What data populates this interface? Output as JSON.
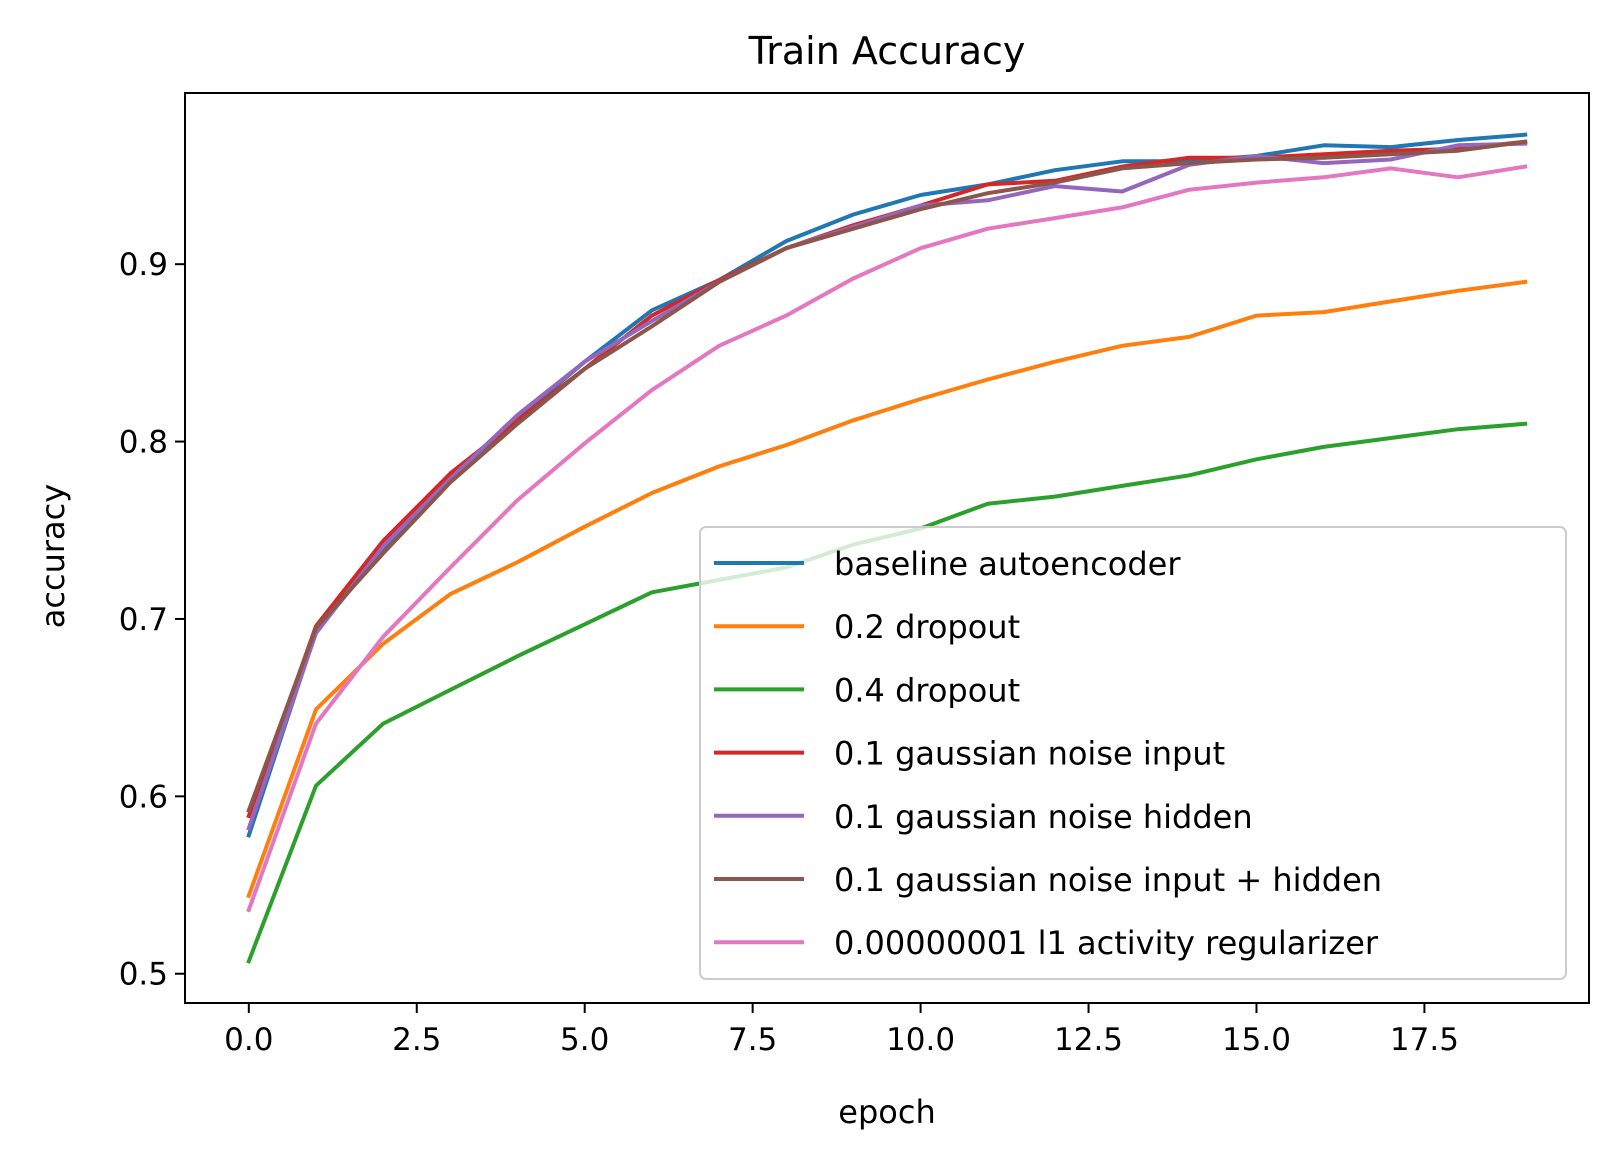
{
  "chart_data": {
    "type": "line",
    "title": "Train Accuracy",
    "xlabel": "epoch",
    "ylabel": "accuracy",
    "xlim": [
      -0.95,
      19.95
    ],
    "ylim": [
      0.4835,
      0.9965
    ],
    "x": [
      0,
      1,
      2,
      3,
      4,
      5,
      6,
      7,
      8,
      9,
      10,
      11,
      12,
      13,
      14,
      15,
      16,
      17,
      18,
      19
    ],
    "xticks": [
      0.0,
      2.5,
      5.0,
      7.5,
      10.0,
      12.5,
      15.0,
      17.5
    ],
    "xtick_labels": [
      "0.0",
      "2.5",
      "5.0",
      "7.5",
      "10.0",
      "12.5",
      "15.0",
      "17.5"
    ],
    "yticks": [
      0.5,
      0.6,
      0.7,
      0.8,
      0.9
    ],
    "ytick_labels": [
      "0.5",
      "0.6",
      "0.7",
      "0.8",
      "0.9"
    ],
    "grid": false,
    "legend_position": "lower right",
    "series": [
      {
        "name": "baseline autoencoder",
        "color": "#1f77b4",
        "values": [
          0.578,
          0.693,
          0.739,
          0.778,
          0.813,
          0.845,
          0.874,
          0.891,
          0.913,
          0.928,
          0.939,
          0.945,
          0.953,
          0.958,
          0.958,
          0.961,
          0.967,
          0.966,
          0.97,
          0.973
        ]
      },
      {
        "name": "0.2 dropout",
        "color": "#ff7f0e",
        "values": [
          0.544,
          0.649,
          0.686,
          0.714,
          0.732,
          0.752,
          0.771,
          0.786,
          0.798,
          0.812,
          0.824,
          0.835,
          0.845,
          0.854,
          0.859,
          0.871,
          0.873,
          0.879,
          0.885,
          0.89
        ]
      },
      {
        "name": "0.4 dropout",
        "color": "#2ca02c",
        "values": [
          0.507,
          0.606,
          0.641,
          0.66,
          0.679,
          0.697,
          0.715,
          0.722,
          0.729,
          0.742,
          0.751,
          0.765,
          0.769,
          0.775,
          0.781,
          0.79,
          0.797,
          0.802,
          0.807,
          0.81
        ]
      },
      {
        "name": "0.1 gaussian noise input",
        "color": "#d62728",
        "values": [
          0.589,
          0.696,
          0.744,
          0.782,
          0.812,
          0.841,
          0.871,
          0.891,
          0.909,
          0.922,
          0.933,
          0.945,
          0.947,
          0.955,
          0.96,
          0.96,
          0.962,
          0.964,
          0.965,
          0.969
        ]
      },
      {
        "name": "0.1 gaussian noise hidden",
        "color": "#9467bd",
        "values": [
          0.582,
          0.692,
          0.741,
          0.779,
          0.815,
          0.845,
          0.868,
          0.89,
          0.909,
          0.921,
          0.933,
          0.936,
          0.944,
          0.941,
          0.956,
          0.961,
          0.957,
          0.959,
          0.967,
          0.968
        ]
      },
      {
        "name": "0.1 gaussian noise input + hidden",
        "color": "#8c564b",
        "values": [
          0.592,
          0.695,
          0.737,
          0.777,
          0.81,
          0.841,
          0.865,
          0.89,
          0.909,
          0.92,
          0.931,
          0.94,
          0.946,
          0.954,
          0.957,
          0.959,
          0.96,
          0.962,
          0.964,
          0.969
        ]
      },
      {
        "name": "0.00000001 l1 activity regularizer",
        "color": "#e377c2",
        "values": [
          0.536,
          0.641,
          0.69,
          0.729,
          0.767,
          0.799,
          0.829,
          0.854,
          0.871,
          0.892,
          0.909,
          0.92,
          0.926,
          0.932,
          0.942,
          0.946,
          0.949,
          0.954,
          0.949,
          0.955
        ]
      }
    ]
  }
}
